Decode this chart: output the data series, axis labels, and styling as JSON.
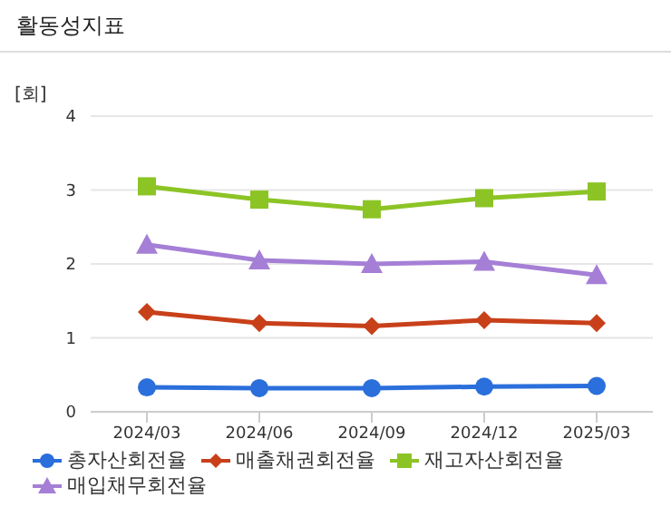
{
  "chart_data": {
    "type": "line",
    "title": "활동성지표",
    "ylabel": "[회]",
    "categories": [
      "2024/03",
      "2024/06",
      "2024/09",
      "2024/12",
      "2025/03"
    ],
    "series": [
      {
        "name": "총자산회전율",
        "color": "#2a6fdb",
        "marker": "circle",
        "values": [
          0.33,
          0.32,
          0.32,
          0.34,
          0.35
        ]
      },
      {
        "name": "매출채권회전율",
        "color": "#c8401a",
        "marker": "diamond",
        "values": [
          1.35,
          1.2,
          1.16,
          1.24,
          1.2
        ]
      },
      {
        "name": "재고자산회전율",
        "color": "#8cc425",
        "marker": "square",
        "values": [
          3.05,
          2.87,
          2.74,
          2.89,
          2.98
        ]
      },
      {
        "name": "매입채무회전율",
        "color": "#a57fd6",
        "marker": "triangle",
        "values": [
          2.26,
          2.05,
          2.0,
          2.03,
          1.85
        ]
      }
    ],
    "ylim": [
      0,
      4
    ],
    "yticks": [
      0,
      1,
      2,
      3,
      4
    ],
    "grid": "y",
    "legend": "bottom"
  }
}
